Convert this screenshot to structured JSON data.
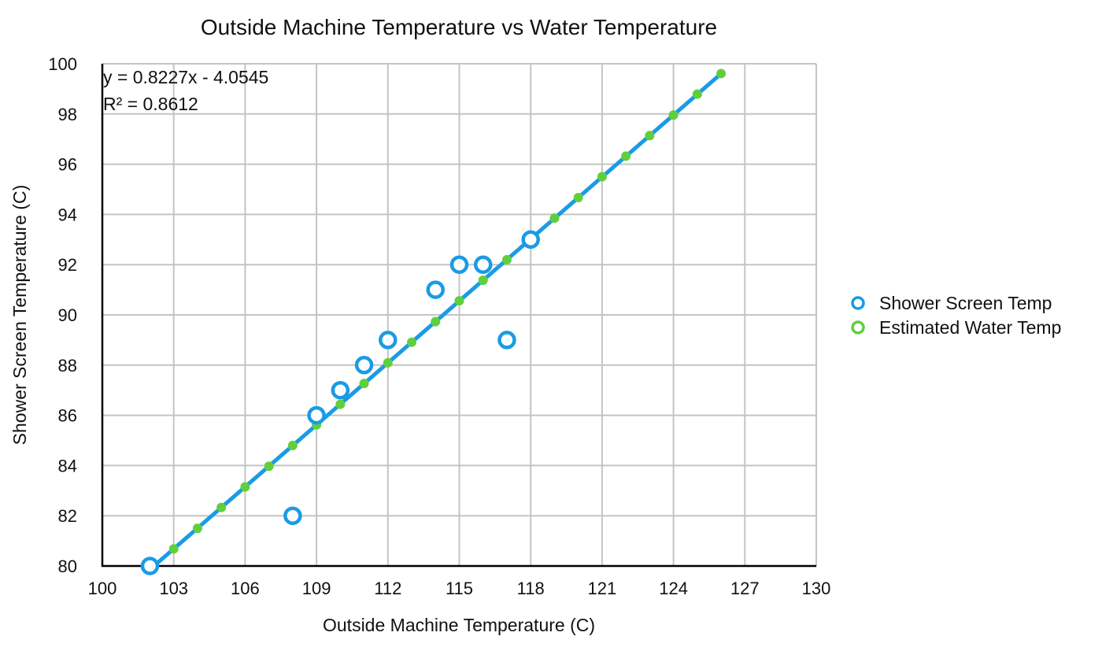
{
  "chart_data": {
    "type": "scatter",
    "title": "Outside Machine Temperature vs Water Temperature",
    "xlabel": "Outside Machine Temperature (C)",
    "ylabel": "Shower Screen Temperature (C)",
    "xlim": [
      100,
      130
    ],
    "ylim": [
      80,
      100
    ],
    "xticks": [
      100,
      103,
      106,
      109,
      112,
      115,
      118,
      121,
      124,
      127,
      130
    ],
    "yticks": [
      80,
      82,
      84,
      86,
      88,
      90,
      92,
      94,
      96,
      98,
      100
    ],
    "grid": true,
    "legend_position": "right",
    "trendline": {
      "equation": "y = 0.8227x - 4.0545",
      "r_squared": "R² = 0.8612",
      "slope": 0.8227,
      "intercept": -4.0545,
      "x_range": [
        102,
        126
      ],
      "color": "#1a9be6"
    },
    "series": [
      {
        "name": "Shower Screen Temp",
        "color": "#1a9be6",
        "marker": "hollow-circle",
        "points": [
          [
            102,
            80
          ],
          [
            108,
            82
          ],
          [
            109,
            86
          ],
          [
            110,
            87
          ],
          [
            111,
            88
          ],
          [
            112,
            89
          ],
          [
            114,
            91
          ],
          [
            115,
            92
          ],
          [
            116,
            92
          ],
          [
            117,
            89
          ],
          [
            118,
            93
          ]
        ]
      },
      {
        "name": "Estimated Water Temp",
        "color": "#5fcf3c",
        "marker": "small-circle",
        "points": [
          [
            103,
            80.68
          ],
          [
            104,
            81.5
          ],
          [
            105,
            82.33
          ],
          [
            106,
            83.15
          ],
          [
            107,
            83.97
          ],
          [
            108,
            84.8
          ],
          [
            109,
            85.62
          ],
          [
            110,
            86.44
          ],
          [
            111,
            87.27
          ],
          [
            112,
            88.09
          ],
          [
            113,
            88.91
          ],
          [
            114,
            89.73
          ],
          [
            115,
            90.56
          ],
          [
            116,
            91.38
          ],
          [
            117,
            92.2
          ],
          [
            118,
            93.03
          ],
          [
            119,
            93.85
          ],
          [
            120,
            94.67
          ],
          [
            121,
            95.5
          ],
          [
            122,
            96.32
          ],
          [
            123,
            97.14
          ],
          [
            124,
            97.96
          ],
          [
            125,
            98.79
          ],
          [
            126,
            99.61
          ]
        ]
      }
    ]
  }
}
